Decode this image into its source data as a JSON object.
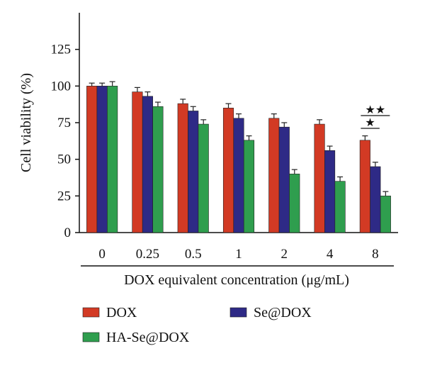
{
  "chart_data": {
    "type": "bar",
    "categories": [
      "0",
      "0.25",
      "0.5",
      "1",
      "2",
      "4",
      "8"
    ],
    "series": [
      {
        "name": "DOX",
        "color": "#d23a24",
        "values": [
          100,
          96,
          88,
          85,
          78,
          74,
          63
        ],
        "errors": [
          2,
          3,
          3,
          3,
          3,
          3,
          3
        ]
      },
      {
        "name": "Se@DOX",
        "color": "#2e2a86",
        "values": [
          100,
          93,
          83,
          78,
          72,
          56,
          45
        ],
        "errors": [
          2,
          3,
          3,
          3,
          3,
          3,
          3
        ]
      },
      {
        "name": "HA-Se@DOX",
        "color": "#2f9e4e",
        "values": [
          100,
          86,
          74,
          63,
          40,
          35,
          25
        ],
        "errors": [
          3,
          3,
          3,
          3,
          3,
          3,
          3
        ]
      }
    ],
    "xlabel": "DOX equivalent concentration (μg/mL)",
    "ylabel": "Cell viability (%)",
    "ylim": [
      0,
      150
    ],
    "yticks": [
      0,
      25,
      50,
      75,
      100,
      125
    ],
    "grid": false,
    "legend_position": "bottom",
    "annotations": [
      {
        "text": "★★",
        "category": "8"
      },
      {
        "text": "★",
        "category": "8"
      }
    ]
  }
}
